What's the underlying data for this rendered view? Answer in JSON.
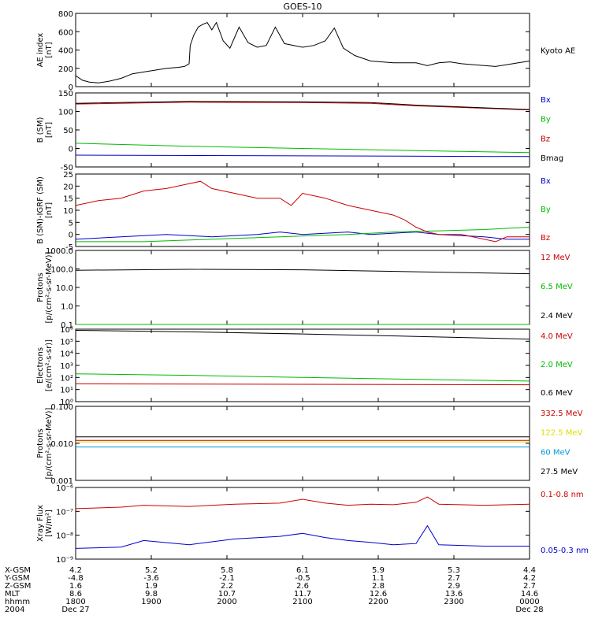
{
  "chart_data": {
    "type": "line",
    "title": "GOES-10",
    "x_ticks": [
      "1800",
      "1900",
      "2000",
      "2100",
      "2200",
      "2300",
      "0000"
    ],
    "panels": [
      {
        "id": "ae",
        "ylabel": [
          "AE index",
          "[nT]"
        ],
        "scale": "linear",
        "ylim": [
          0,
          800
        ],
        "yticks": [
          "0",
          "200",
          "400",
          "600",
          "800"
        ],
        "series": [
          {
            "name": "Kyoto AE",
            "color": "#000000",
            "points": [
              [
                0,
                120
              ],
              [
                0.03,
                70
              ],
              [
                0.06,
                50
              ],
              [
                0.1,
                40
              ],
              [
                0.15,
                60
              ],
              [
                0.2,
                90
              ],
              [
                0.25,
                140
              ],
              [
                0.3,
                160
              ],
              [
                0.35,
                180
              ],
              [
                0.4,
                200
              ],
              [
                0.45,
                210
              ],
              [
                0.48,
                220
              ],
              [
                0.5,
                250
              ],
              [
                0.505,
                450
              ],
              [
                0.52,
                560
              ],
              [
                0.54,
                650
              ],
              [
                0.56,
                680
              ],
              [
                0.58,
                700
              ],
              [
                0.6,
                620
              ],
              [
                0.62,
                700
              ],
              [
                0.65,
                500
              ],
              [
                0.68,
                420
              ],
              [
                0.72,
                650
              ],
              [
                0.76,
                480
              ],
              [
                0.8,
                430
              ],
              [
                0.84,
                450
              ],
              [
                0.88,
                650
              ],
              [
                0.92,
                470
              ],
              [
                1.0,
                430
              ],
              [
                1.05,
                450
              ],
              [
                1.1,
                500
              ],
              [
                1.14,
                640
              ],
              [
                1.18,
                420
              ],
              [
                1.23,
                340
              ],
              [
                1.3,
                280
              ],
              [
                1.4,
                260
              ],
              [
                1.5,
                260
              ],
              [
                1.55,
                230
              ],
              [
                1.6,
                260
              ],
              [
                1.65,
                270
              ],
              [
                1.7,
                250
              ],
              [
                1.75,
                240
              ],
              [
                1.8,
                230
              ],
              [
                1.85,
                220
              ],
              [
                1.9,
                240
              ],
              [
                1.95,
                260
              ],
              [
                2.0,
                280
              ]
            ]
          }
        ]
      },
      {
        "id": "bsm",
        "ylabel": [
          "B (SM)",
          "[nT]"
        ],
        "scale": "linear",
        "ylim": [
          -50,
          150
        ],
        "yticks": [
          "-50",
          "0",
          "50",
          "100",
          "150"
        ],
        "series": [
          {
            "name": "Bx",
            "color": "#0000cc",
            "points": [
              [
                0,
                -18
              ],
              [
                2,
                -22
              ]
            ]
          },
          {
            "name": "By",
            "color": "#00bb00",
            "points": [
              [
                0,
                14
              ],
              [
                0.5,
                6
              ],
              [
                1,
                0
              ],
              [
                1.5,
                -6
              ],
              [
                2,
                -11
              ]
            ]
          },
          {
            "name": "Bz",
            "color": "#cc0000",
            "points": [
              [
                0,
                120
              ],
              [
                0.5,
                125
              ],
              [
                1,
                124
              ],
              [
                1.3,
                122
              ],
              [
                1.5,
                115
              ],
              [
                2,
                104
              ]
            ]
          },
          {
            "name": "Bmag",
            "color": "#000000",
            "points": [
              [
                0,
                122
              ],
              [
                0.5,
                127
              ],
              [
                1,
                126
              ],
              [
                1.3,
                124
              ],
              [
                1.5,
                117
              ],
              [
                2,
                105
              ]
            ]
          }
        ]
      },
      {
        "id": "bdiff",
        "ylabel": [
          "B (SM)-IGRF (SM)",
          "[nT]"
        ],
        "scale": "linear",
        "ylim": [
          -5,
          25
        ],
        "yticks": [
          "-5",
          "0",
          "5",
          "10",
          "15",
          "20",
          "25"
        ],
        "series": [
          {
            "name": "Bx",
            "color": "#0000cc",
            "points": [
              [
                0,
                -2
              ],
              [
                0.2,
                -1
              ],
              [
                0.4,
                0
              ],
              [
                0.6,
                -1
              ],
              [
                0.8,
                0
              ],
              [
                0.9,
                1
              ],
              [
                1,
                0
              ],
              [
                1.2,
                1
              ],
              [
                1.3,
                0
              ],
              [
                1.5,
                1
              ],
              [
                1.6,
                0
              ],
              [
                1.8,
                -1
              ],
              [
                1.9,
                -2
              ],
              [
                2,
                -2
              ]
            ]
          },
          {
            "name": "By",
            "color": "#00bb00",
            "points": [
              [
                0,
                -3
              ],
              [
                0.3,
                -3
              ],
              [
                0.6,
                -2
              ],
              [
                0.9,
                -1
              ],
              [
                1.2,
                0
              ],
              [
                1.4,
                1
              ],
              [
                1.6,
                1.5
              ],
              [
                1.8,
                2
              ],
              [
                2,
                3
              ]
            ]
          },
          {
            "name": "Bz",
            "color": "#cc0000",
            "points": [
              [
                0,
                12
              ],
              [
                0.1,
                14
              ],
              [
                0.2,
                15
              ],
              [
                0.3,
                18
              ],
              [
                0.4,
                19
              ],
              [
                0.5,
                21
              ],
              [
                0.55,
                22
              ],
              [
                0.6,
                19
              ],
              [
                0.7,
                17
              ],
              [
                0.8,
                15
              ],
              [
                0.9,
                15
              ],
              [
                0.95,
                12
              ],
              [
                1.0,
                17
              ],
              [
                1.05,
                16
              ],
              [
                1.1,
                15
              ],
              [
                1.2,
                12
              ],
              [
                1.3,
                10
              ],
              [
                1.4,
                8
              ],
              [
                1.45,
                6
              ],
              [
                1.5,
                3
              ],
              [
                1.55,
                1
              ],
              [
                1.6,
                0
              ],
              [
                1.7,
                0
              ],
              [
                1.8,
                -2
              ],
              [
                1.85,
                -3
              ],
              [
                1.9,
                -1
              ],
              [
                2,
                -1
              ]
            ]
          }
        ]
      },
      {
        "id": "protons_low",
        "ylabel": [
          "Protons",
          "[p/(cm²-s-sr-MeV)]"
        ],
        "scale": "log",
        "ylim": [
          0.1,
          1000
        ],
        "yticks": [
          "0.1",
          "1.0",
          "10.0",
          "100.0",
          "1000.0"
        ],
        "series": [
          {
            "name": "12 MeV",
            "color": "#cc0000",
            "points": [
              [
                0,
                0.1
              ],
              [
                2,
                0.1
              ]
            ]
          },
          {
            "name": "6.5 MeV",
            "color": "#00bb00",
            "points": [
              [
                0,
                0.1
              ],
              [
                2,
                0.1
              ]
            ]
          },
          {
            "name": "2.4 MeV",
            "color": "#000000",
            "points": [
              [
                0,
                85
              ],
              [
                0.5,
                95
              ],
              [
                1,
                90
              ],
              [
                1.5,
                70
              ],
              [
                2,
                55
              ]
            ]
          }
        ]
      },
      {
        "id": "electrons",
        "ylabel": [
          "Electrons",
          "[e/(cm²-s-sr)]"
        ],
        "scale": "log",
        "ylim": [
          1,
          1000000
        ],
        "yticks": [
          "10⁰",
          "10¹",
          "10²",
          "10³",
          "10⁴",
          "10⁵",
          "10⁶"
        ],
        "series": [
          {
            "name": "4.0 MeV",
            "color": "#cc0000",
            "points": [
              [
                0,
                30
              ],
              [
                2,
                25
              ]
            ]
          },
          {
            "name": "2.0 MeV",
            "color": "#00bb00",
            "points": [
              [
                0,
                200
              ],
              [
                0.5,
                150
              ],
              [
                1,
                100
              ],
              [
                1.5,
                70
              ],
              [
                2,
                50
              ]
            ]
          },
          {
            "name": "0.6 MeV",
            "color": "#000000",
            "points": [
              [
                0,
                800000
              ],
              [
                0.5,
                600000
              ],
              [
                1,
                400000
              ],
              [
                1.5,
                250000
              ],
              [
                2,
                150000
              ]
            ]
          }
        ]
      },
      {
        "id": "protons_high",
        "ylabel": [
          "Protons",
          "[p/(cm²-s-sr-MeV)]"
        ],
        "scale": "log",
        "ylim": [
          0.001,
          0.1
        ],
        "yticks": [
          "0.001",
          "0.010",
          "0.100"
        ],
        "series": [
          {
            "name": "332.5 MeV",
            "color": "#cc0000",
            "points": [
              [
                0,
                0.012
              ],
              [
                2,
                0.012
              ]
            ]
          },
          {
            "name": "122.5 MeV",
            "color": "#dddd00",
            "points": [
              [
                0,
                0.011
              ],
              [
                2,
                0.011
              ]
            ]
          },
          {
            "name": "60 MeV",
            "color": "#0099dd",
            "points": [
              [
                0,
                0.008
              ],
              [
                2,
                0.008
              ]
            ]
          },
          {
            "name": "27.5 MeV",
            "color": "#000000",
            "points": [
              [
                0,
                0.015
              ],
              [
                2,
                0.015
              ]
            ]
          }
        ]
      },
      {
        "id": "xray",
        "ylabel": [
          "Xray Flux",
          "[W/m²]"
        ],
        "scale": "log",
        "ylim": [
          1e-09,
          1e-06
        ],
        "yticks": [
          "10⁻⁹",
          "10⁻⁸",
          "10⁻⁷",
          "10⁻⁶"
        ],
        "series": [
          {
            "name": "0.1-0.8 nm",
            "color": "#cc0000",
            "points": [
              [
                0,
                1.3e-07
              ],
              [
                0.2,
                1.5e-07
              ],
              [
                0.3,
                1.8e-07
              ],
              [
                0.5,
                1.6e-07
              ],
              [
                0.7,
                2e-07
              ],
              [
                0.9,
                2.2e-07
              ],
              [
                1.0,
                3.2e-07
              ],
              [
                1.1,
                2.2e-07
              ],
              [
                1.2,
                1.8e-07
              ],
              [
                1.3,
                2e-07
              ],
              [
                1.4,
                1.9e-07
              ],
              [
                1.5,
                2.4e-07
              ],
              [
                1.55,
                4e-07
              ],
              [
                1.6,
                2e-07
              ],
              [
                1.8,
                1.8e-07
              ],
              [
                2,
                2e-07
              ]
            ]
          },
          {
            "name": "0.05-0.3 nm",
            "color": "#0000cc",
            "points": [
              [
                0,
                2.8e-09
              ],
              [
                0.2,
                3.2e-09
              ],
              [
                0.3,
                6e-09
              ],
              [
                0.5,
                4e-09
              ],
              [
                0.7,
                7e-09
              ],
              [
                0.9,
                9e-09
              ],
              [
                1.0,
                1.2e-08
              ],
              [
                1.1,
                8e-09
              ],
              [
                1.2,
                6e-09
              ],
              [
                1.3,
                5e-09
              ],
              [
                1.4,
                4e-09
              ],
              [
                1.5,
                4.5e-09
              ],
              [
                1.55,
                2.5e-08
              ],
              [
                1.6,
                4e-09
              ],
              [
                1.8,
                3.5e-09
              ],
              [
                2,
                3.5e-09
              ]
            ]
          }
        ]
      }
    ],
    "ephemeris": {
      "row_labels": [
        "X-GSM",
        "Y-GSM",
        "Z-GSM",
        "MLT",
        "hhmm",
        "2004"
      ],
      "columns": [
        [
          "4.2",
          "-4.8",
          "1.6",
          "8.6",
          "1800",
          "Dec 27"
        ],
        [
          "5.2",
          "-3.6",
          "1.9",
          "9.8",
          "1900",
          ""
        ],
        [
          "5.8",
          "-2.1",
          "2.2",
          "10.7",
          "2000",
          ""
        ],
        [
          "6.1",
          "-0.5",
          "2.6",
          "11.7",
          "2100",
          ""
        ],
        [
          "5.9",
          "1.1",
          "2.8",
          "12.6",
          "2200",
          ""
        ],
        [
          "5.3",
          "2.7",
          "2.9",
          "13.6",
          "2300",
          ""
        ],
        [
          "4.4",
          "4.2",
          "2.7",
          "14.6",
          "0000",
          "Dec 28"
        ]
      ]
    }
  }
}
